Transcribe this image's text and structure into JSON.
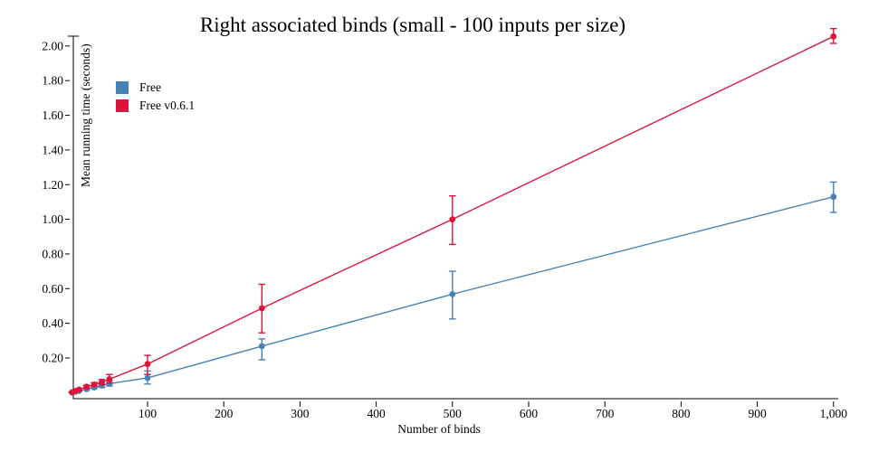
{
  "chart_data": {
    "type": "line",
    "title": "Right associated binds (small - 100 inputs per size)",
    "xlabel": "Number of binds",
    "ylabel": "Mean running time (seconds)",
    "grid": false,
    "legend_position": "upper-left-inside",
    "xlim": [
      0,
      1005
    ],
    "ylim": [
      -0.035,
      2.06
    ],
    "x_ticks": {
      "values": [
        100,
        200,
        300,
        400,
        500,
        600,
        700,
        800,
        900,
        1000
      ],
      "labels": [
        "100",
        "200",
        "300",
        "400",
        "500",
        "600",
        "700",
        "800",
        "900",
        "1,000"
      ]
    },
    "y_ticks": {
      "values": [
        0.2,
        0.4,
        0.6,
        0.8,
        1.0,
        1.2,
        1.4,
        1.6,
        1.8,
        2.0
      ],
      "labels": [
        "0.20",
        "0.40",
        "0.60",
        "0.80",
        "1.00",
        "1.20",
        "1.40",
        "1.60",
        "1.80",
        "2.00"
      ]
    },
    "x": [
      1,
      5,
      10,
      20,
      30,
      40,
      50,
      100,
      250,
      500,
      1000
    ],
    "series": [
      {
        "name": "Free",
        "color": "#4682B4",
        "marker": "circle",
        "y": [
          0.001,
          0.005,
          0.01,
          0.02,
          0.03,
          0.041,
          0.052,
          0.085,
          0.268,
          0.568,
          1.13
        ],
        "err_lo": [
          0.0,
          0.003,
          0.007,
          0.014,
          0.023,
          0.03,
          0.038,
          0.05,
          0.19,
          0.425,
          1.04
        ],
        "err_hi": [
          0.002,
          0.007,
          0.014,
          0.026,
          0.037,
          0.052,
          0.067,
          0.125,
          0.31,
          0.7,
          1.215
        ]
      },
      {
        "name": "Free v0.6.1",
        "color": "#DC143C",
        "marker": "circle",
        "y": [
          0.002,
          0.009,
          0.018,
          0.034,
          0.047,
          0.06,
          0.078,
          0.165,
          0.487,
          1.0,
          2.055
        ],
        "err_lo": [
          0.001,
          0.006,
          0.013,
          0.026,
          0.036,
          0.045,
          0.056,
          0.105,
          0.345,
          0.855,
          2.015
        ],
        "err_hi": [
          0.004,
          0.012,
          0.024,
          0.043,
          0.058,
          0.076,
          0.105,
          0.215,
          0.625,
          1.135,
          2.1
        ]
      }
    ],
    "axis_color": "#000000"
  }
}
